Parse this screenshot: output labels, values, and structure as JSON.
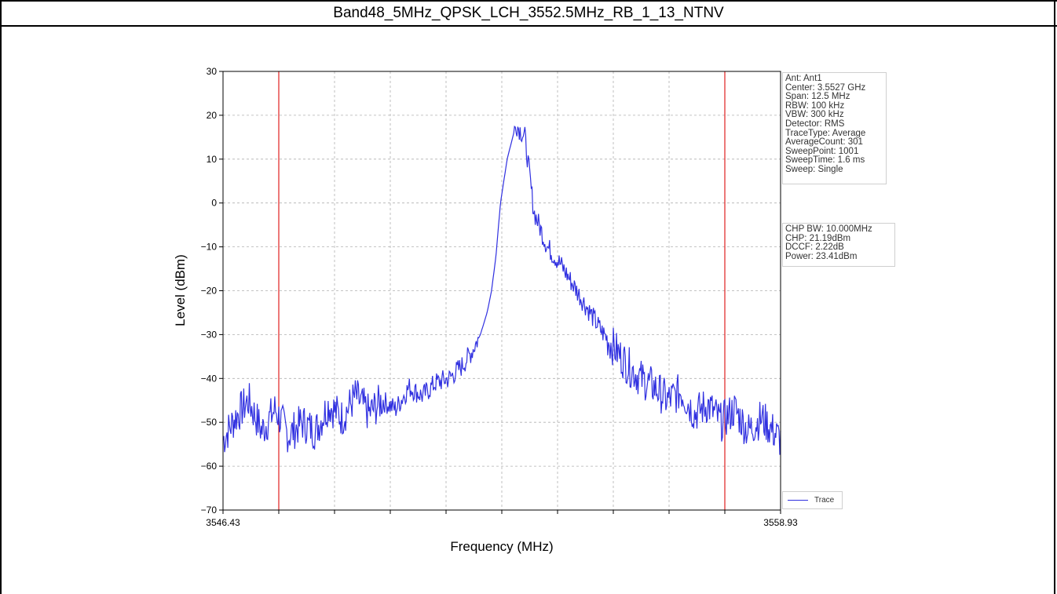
{
  "header": {
    "title": "Band48_5MHz_QPSK_LCH_3552.5MHz_RB_1_13_NTNV"
  },
  "settings_box": {
    "lines": [
      "Ant: Ant1",
      "Center: 3.5527 GHz",
      "Span: 12.5 MHz",
      "RBW: 100 kHz",
      "VBW: 300 kHz",
      "Detector: RMS",
      "TraceType: Average",
      "AverageCount: 301",
      "SweepPoint: 1001",
      "SweepTime: 1.6 ms",
      "Sweep: Single"
    ]
  },
  "result_box": {
    "lines": [
      "CHP BW: 10.000MHz",
      "CHP: 21.19dBm",
      "DCCF: 2.22dB",
      "Power: 23.41dBm"
    ]
  },
  "colors": {
    "trace": "#3030e0",
    "limit_lines": "#e02020",
    "grid": "#b0b0b0"
  },
  "chart_data": {
    "type": "line",
    "title": "",
    "xlabel": "Frequency (MHz)",
    "ylabel": "Level (dBm)",
    "xlim": [
      3546.43,
      3558.93
    ],
    "ylim": [
      -70,
      30
    ],
    "x_tick_labels": [
      "3546.43",
      "3558.93"
    ],
    "x_grid_count": 10,
    "y_ticks": [
      30,
      20,
      10,
      0,
      -10,
      -20,
      -30,
      -40,
      -50,
      -60,
      -70
    ],
    "grid": true,
    "legend_position": "bottom-right",
    "vertical_markers_mhz": [
      3547.68,
      3557.68
    ],
    "series": [
      {
        "name": "Trace",
        "x": [
          3546.43,
          3546.7,
          3547.0,
          3547.3,
          3547.6,
          3547.9,
          3548.2,
          3548.5,
          3548.8,
          3549.1,
          3549.4,
          3549.7,
          3550.0,
          3550.3,
          3550.6,
          3550.9,
          3551.2,
          3551.5,
          3551.8,
          3552.0,
          3552.2,
          3552.35,
          3552.45,
          3552.55,
          3552.65,
          3552.8,
          3553.0,
          3553.2,
          3553.4,
          3553.7,
          3554.0,
          3554.3,
          3554.6,
          3554.9,
          3555.2,
          3555.5,
          3555.8,
          3556.1,
          3556.4,
          3556.7,
          3557.0,
          3557.3,
          3557.6,
          3557.9,
          3558.2,
          3558.5,
          3558.93
        ],
        "values": [
          -54,
          -49,
          -45,
          -52,
          -47,
          -53,
          -50,
          -52,
          -46,
          -49,
          -44,
          -48,
          -45,
          -47,
          -42,
          -44,
          -41,
          -40,
          -37,
          -34,
          -30,
          -25,
          -20,
          -12,
          0,
          10,
          18,
          15,
          -2,
          -10,
          -14,
          -19,
          -24,
          -29,
          -33,
          -37,
          -40,
          -42,
          -45,
          -43,
          -48,
          -46,
          -50,
          -47,
          -52,
          -49,
          -54
        ]
      }
    ]
  }
}
